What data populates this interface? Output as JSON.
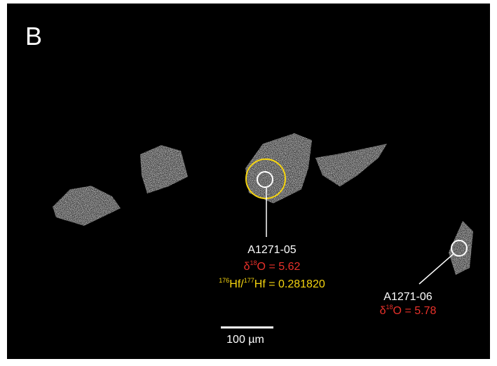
{
  "panel_label": "B",
  "spots": [
    {
      "name": "A1271-05",
      "d18o_symbol": "δ",
      "d18o_sup": "18",
      "d18o_text": "O = 5.62",
      "hf_sup1": "176",
      "hf_mid": "Hf/",
      "hf_sup2": "177",
      "hf_text": "Hf = 0.281820"
    },
    {
      "name": "A1271-06",
      "d18o_symbol": "δ",
      "d18o_sup": "18",
      "d18o_text": "O = 5.78"
    }
  ],
  "scale_bar": "100 µm"
}
